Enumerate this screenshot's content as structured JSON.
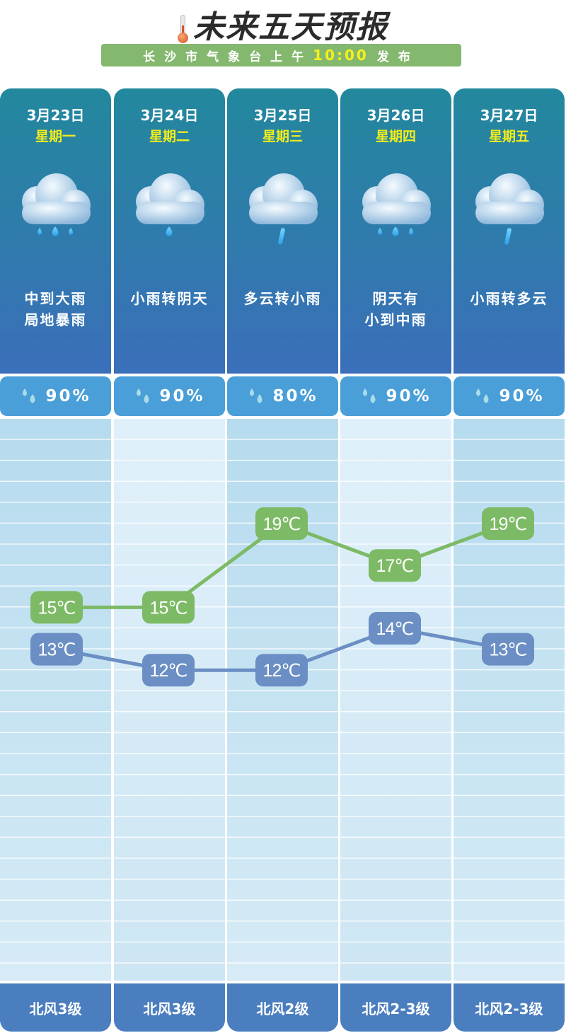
{
  "header": {
    "title": "未来五天预报",
    "subtitle_prefix": "长沙市气象台上午",
    "time": "10:00",
    "subtitle_suffix": "发布"
  },
  "days": [
    {
      "date": "3月23日",
      "weekday": "星期一",
      "desc1": "中到大雨",
      "desc2": "局地暴雨",
      "icon": "heavy-rain-icon",
      "precip": "90%",
      "high": "15℃",
      "low": "13℃",
      "wind": "北风3级"
    },
    {
      "date": "3月24日",
      "weekday": "星期二",
      "desc1": "小雨转阴天",
      "desc2": "",
      "icon": "light-rain-icon",
      "precip": "90%",
      "high": "15℃",
      "low": "12℃",
      "wind": "北风3级"
    },
    {
      "date": "3月25日",
      "weekday": "星期三",
      "desc1": "多云转小雨",
      "desc2": "",
      "icon": "cloudy-rain-icon",
      "precip": "80%",
      "high": "19℃",
      "low": "12℃",
      "wind": "北风2级"
    },
    {
      "date": "3月26日",
      "weekday": "星期四",
      "desc1": "阴天有",
      "desc2": "小到中雨",
      "icon": "moderate-rain-icon",
      "precip": "90%",
      "high": "17℃",
      "low": "14℃",
      "wind": "北风2-3级"
    },
    {
      "date": "3月27日",
      "weekday": "星期五",
      "desc1": "小雨转多云",
      "desc2": "",
      "icon": "cloudy-rain-icon",
      "precip": "90%",
      "high": "19℃",
      "low": "13℃",
      "wind": "北风2-3级"
    }
  ],
  "chart_data": {
    "type": "line",
    "categories": [
      "3月23日",
      "3月24日",
      "3月25日",
      "3月26日",
      "3月27日"
    ],
    "series": [
      {
        "values": [
          15,
          15,
          19,
          17,
          19
        ],
        "color": "#7dba66"
      },
      {
        "values": [
          13,
          12,
          12,
          14,
          13
        ],
        "color": "#6b8fc4"
      }
    ]
  },
  "colors": {
    "card_top": "#22889d",
    "card_bottom": "#3b6fba",
    "precip": "#4a9fd8",
    "wind": "#4b7ebf",
    "high": "#7dba66",
    "low": "#6b8fc4",
    "subtitle_bar": "#84b86e",
    "time": "#f6ef1c"
  }
}
